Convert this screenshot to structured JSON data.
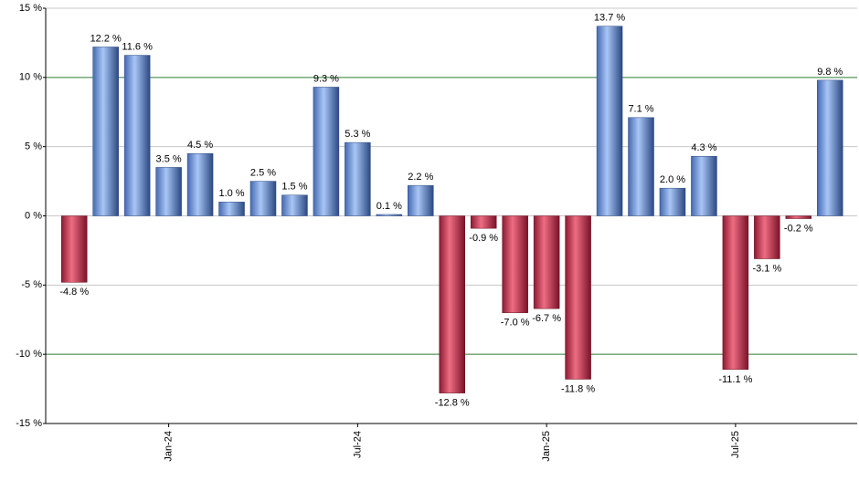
{
  "chart_data": {
    "type": "bar",
    "categories": [
      null,
      null,
      null,
      "Jan-24",
      null,
      null,
      null,
      null,
      null,
      "Jul-24",
      null,
      null,
      null,
      null,
      null,
      "Jan-25",
      null,
      null,
      null,
      null,
      null,
      "Jul-25",
      null,
      null,
      null
    ],
    "values": [
      -4.8,
      12.2,
      11.6,
      3.5,
      4.5,
      1.0,
      2.5,
      1.5,
      9.3,
      5.3,
      0.1,
      2.2,
      -12.8,
      -0.9,
      -7.0,
      -6.7,
      -11.8,
      13.7,
      7.1,
      2.0,
      4.3,
      -11.1,
      -3.1,
      -0.2,
      9.8
    ],
    "value_labels": [
      "-4.8 %",
      "12.2 %",
      "11.6 %",
      "3.5 %",
      "4.5 %",
      "1.0 %",
      "2.5 %",
      "1.5 %",
      "9.3 %",
      "5.3 %",
      "0.1 %",
      "2.2 %",
      "-12.8 %",
      "-0.9 %",
      "-7.0 %",
      "-6.7 %",
      "-11.8 %",
      "13.7 %",
      "7.1 %",
      "2.0 %",
      "4.3 %",
      "-11.1 %",
      "-3.1 %",
      "-0.2 %",
      "9.8 %"
    ],
    "ylim": [
      -15,
      15
    ],
    "yticks": [
      {
        "value": -15,
        "label": "-15 %"
      },
      {
        "value": -10,
        "label": "-10 %"
      },
      {
        "value": -5,
        "label": "-5 %"
      },
      {
        "value": 0,
        "label": "0 %"
      },
      {
        "value": 5,
        "label": "5 %"
      },
      {
        "value": 10,
        "label": "10 %"
      },
      {
        "value": 15,
        "label": "15 %"
      }
    ],
    "grid": true,
    "grid_colors": [
      "#c8c8c8",
      "#2e7d32",
      "#c8c8c8",
      "#c8c8c8",
      "#c8c8c8",
      "#2e7d32",
      "#c8c8c8"
    ],
    "positive_colors": [
      "#4569b0",
      "#a9c6f6",
      "#2b4882"
    ],
    "negative_colors": [
      "#8a1a32",
      "#ee6d82",
      "#7a1228"
    ]
  }
}
